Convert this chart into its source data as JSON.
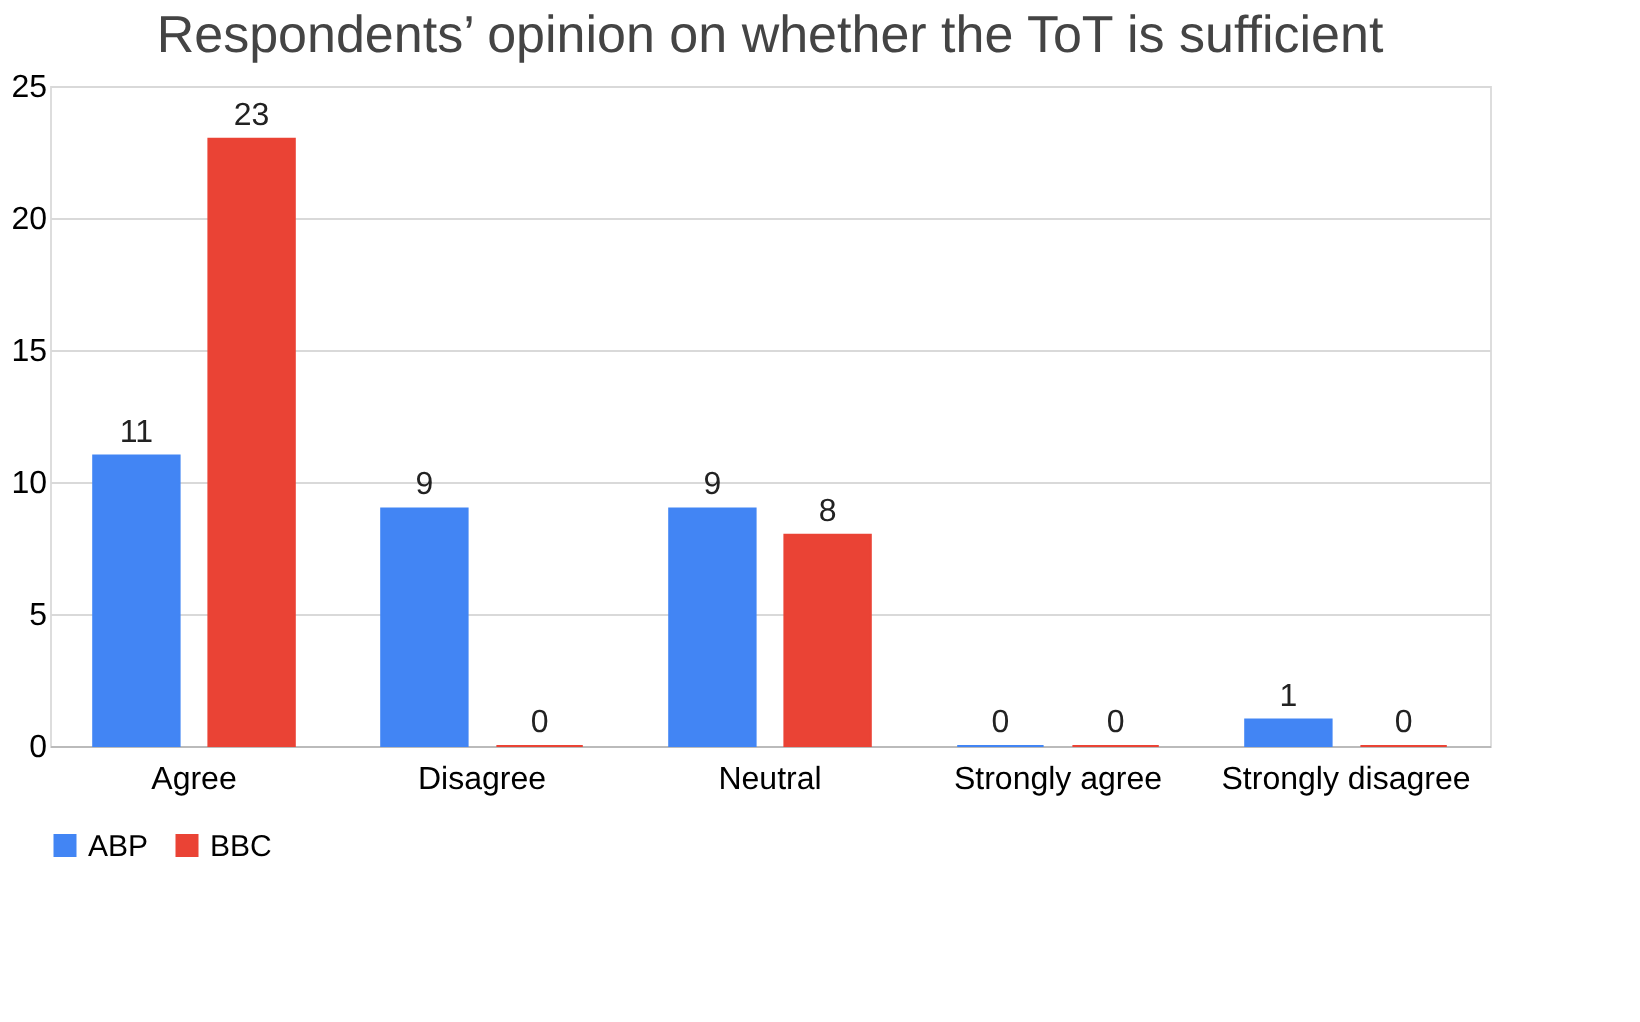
{
  "chart_data": {
    "type": "bar",
    "title": "Respondents’ opinion on whether the ToT is sufficient",
    "categories": [
      "Agree",
      "Disagree",
      "Neutral",
      "Strongly agree",
      "Strongly disagree"
    ],
    "series": [
      {
        "name": "ABP",
        "color": "#4285f4",
        "values": [
          11,
          9,
          9,
          0,
          1
        ]
      },
      {
        "name": "BBC",
        "color": "#ea4335",
        "values": [
          23,
          0,
          8,
          0,
          0
        ]
      }
    ],
    "ylim": [
      0,
      25
    ],
    "yticks": [
      0,
      5,
      10,
      15,
      20,
      25
    ],
    "grid": "y",
    "legend": "bottom",
    "data_labels": true
  }
}
